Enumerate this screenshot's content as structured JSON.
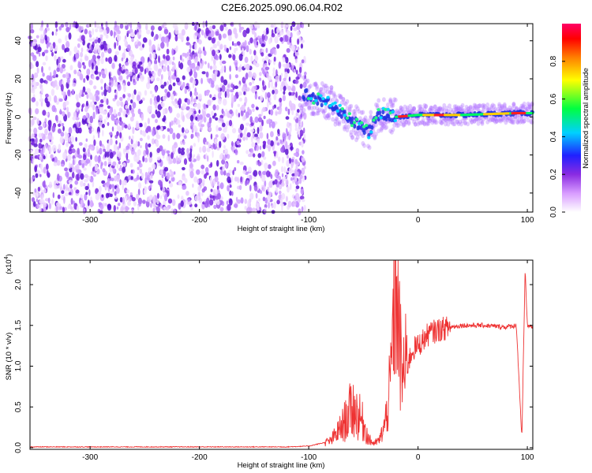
{
  "title": "C2E6.2025.090.06.04.R02",
  "chart_data": [
    {
      "type": "heatmap",
      "xlabel": "Height of straight line (km)",
      "ylabel": "Frequency (Hz)",
      "xlim": [
        -355,
        105
      ],
      "ylim": [
        -50,
        49
      ],
      "xticks": [
        -300,
        -200,
        -100,
        0,
        100
      ],
      "yticks": [
        -40,
        -20,
        0,
        20,
        40
      ],
      "noise_region_x": [
        -355,
        -103
      ],
      "ridge": [
        {
          "x": -105,
          "y": 12
        },
        {
          "x": -80,
          "y": 7
        },
        {
          "x": -60,
          "y": -2
        },
        {
          "x": -45,
          "y": -8
        },
        {
          "x": -35,
          "y": 2
        },
        {
          "x": -20,
          "y": 0
        },
        {
          "x": 0,
          "y": 1
        },
        {
          "x": 40,
          "y": 1
        },
        {
          "x": 90,
          "y": 2
        },
        {
          "x": 105,
          "y": 2
        }
      ],
      "colorbar": {
        "label": "Normalized spectral amplitude",
        "ticks": [
          "0.0",
          "0.2",
          "0.4",
          "0.6",
          "0.8"
        ],
        "range": [
          0,
          1
        ],
        "colors": [
          "#ffffff",
          "#cc88ff",
          "#5a10e6",
          "#0000ff",
          "#00c8ff",
          "#00ff40",
          "#ffff00",
          "#ff8000",
          "#ff0000",
          "#ff0066"
        ]
      }
    },
    {
      "type": "line",
      "xlabel": "Height of straight line (km)",
      "ylabel": "SNR (10 * v/v)",
      "exponent_label": "(x10",
      "exponent_power": "4",
      "exponent_close": ")",
      "xlim": [
        -355,
        105
      ],
      "ylim": [
        -0.02,
        2.3
      ],
      "xticks": [
        -300,
        -200,
        -100,
        0,
        100
      ],
      "yticks": [
        "0.0",
        "0.5",
        "1.0",
        "1.5",
        "2.0"
      ],
      "line_color": "#ee3333",
      "series": [
        {
          "x": [
            -355,
            -120,
            -100,
            -80,
            -70,
            -60,
            -55,
            -50,
            -45,
            -40,
            -35,
            -30,
            -25,
            -22,
            -20,
            -18,
            -15,
            -10,
            -5,
            0,
            10,
            20,
            30,
            40,
            60,
            80,
            90,
            95,
            98,
            100,
            105
          ],
          "y": [
            0.01,
            0.01,
            0.02,
            0.08,
            0.25,
            0.5,
            0.4,
            0.3,
            0.1,
            0.05,
            0.1,
            0.3,
            0.8,
            1.8,
            2.2,
            1.5,
            0.9,
            1.0,
            1.2,
            1.25,
            1.4,
            1.45,
            1.48,
            1.5,
            1.5,
            1.48,
            1.5,
            0.1,
            2.2,
            1.5,
            1.48
          ]
        }
      ]
    }
  ]
}
